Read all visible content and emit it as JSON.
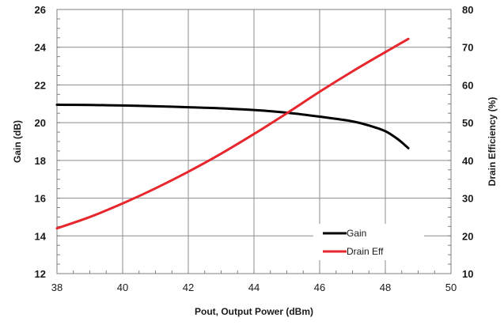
{
  "chart_data": {
    "type": "line",
    "title": "",
    "xlabel": "Pout, Output Power (dBm)",
    "ylabel": "Gain (dB)",
    "y2label": "Drain Efficiency (%)",
    "xlim": [
      38,
      50
    ],
    "ylim": [
      12,
      26
    ],
    "y2lim": [
      10,
      80
    ],
    "xticks": [
      38,
      40,
      42,
      44,
      46,
      48,
      50
    ],
    "yticks": [
      12,
      14,
      16,
      18,
      20,
      22,
      24,
      26
    ],
    "y2ticks": [
      10,
      20,
      30,
      40,
      50,
      60,
      70,
      80
    ],
    "grid": true,
    "legend_position": "bottom-right",
    "series": [
      {
        "name": "Gain",
        "axis": "left",
        "color": "#000000",
        "x": [
          38.0,
          39.0,
          40.0,
          41.0,
          42.0,
          43.0,
          44.0,
          45.0,
          46.0,
          47.0,
          47.5,
          48.0,
          48.4,
          48.7
        ],
        "y": [
          20.95,
          20.94,
          20.91,
          20.87,
          20.82,
          20.76,
          20.67,
          20.53,
          20.32,
          20.07,
          19.85,
          19.55,
          19.1,
          18.65
        ]
      },
      {
        "name": "Drain Eff",
        "axis": "right",
        "color": "#e8262d",
        "x": [
          38.0,
          39.0,
          40.0,
          41.0,
          42.0,
          43.0,
          44.0,
          45.0,
          46.0,
          47.0,
          48.0,
          48.7
        ],
        "y": [
          22.0,
          25.0,
          28.6,
          32.6,
          37.0,
          41.8,
          47.0,
          52.5,
          58.2,
          63.6,
          68.7,
          72.2
        ]
      }
    ]
  }
}
